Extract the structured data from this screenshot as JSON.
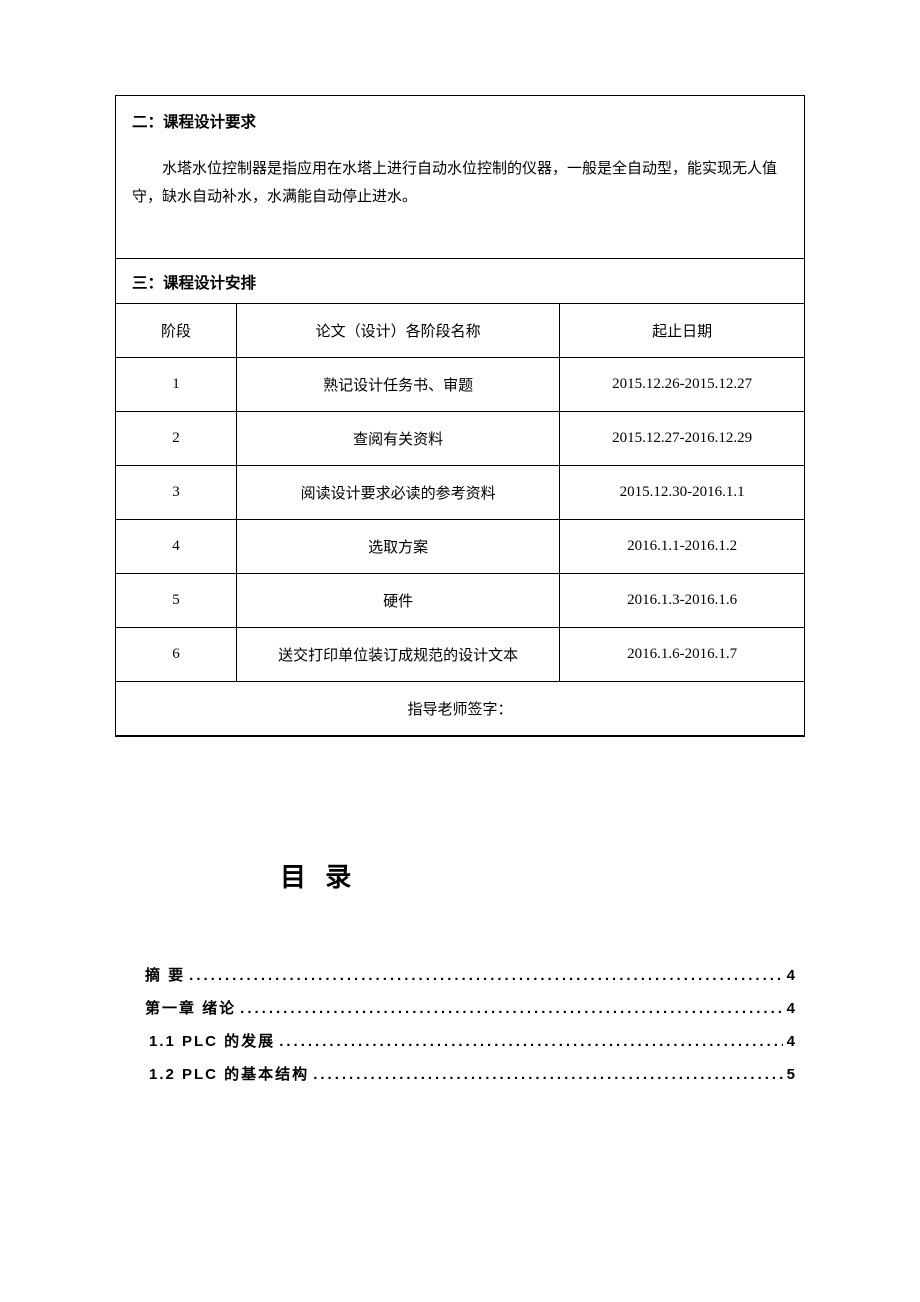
{
  "sections": {
    "req": {
      "heading": "二：课程设计要求",
      "para": "水塔水位控制器是指应用在水塔上进行自动水位控制的仪器，一般是全自动型，能实现无人值守，缺水自动补水，水满能自动停止进水。"
    },
    "plan": {
      "heading": "三：课程设计安排",
      "columns": {
        "stage": "阶段",
        "name": "论文（设计）各阶段名称",
        "date": "起止日期"
      },
      "rows": [
        {
          "stage": "1",
          "name": "熟记设计任务书、审题",
          "date": "2015.12.26-2015.12.27"
        },
        {
          "stage": "2",
          "name": "查阅有关资料",
          "date": "2015.12.27-2016.12.29"
        },
        {
          "stage": "3",
          "name": "阅读设计要求必读的参考资料",
          "date": "2015.12.30-2016.1.1"
        },
        {
          "stage": "4",
          "name": "选取方案",
          "date": "2016.1.1-2016.1.2"
        },
        {
          "stage": "5",
          "name": "硬件",
          "date": "2016.1.3-2016.1.6"
        },
        {
          "stage": "6",
          "name": "送交打印单位装订成规范的设计文本",
          "date": "2016.1.6-2016.1.7"
        }
      ],
      "sign_label": "指导老师签字："
    }
  },
  "toc": {
    "title": "目 录",
    "items": [
      {
        "label": "摘  要",
        "page": "4",
        "sub": false
      },
      {
        "label": "第一章 绪论",
        "page": "4",
        "sub": false
      },
      {
        "label": "1.1 PLC 的发展",
        "page": "4",
        "sub": true
      },
      {
        "label": "1.2 PLC 的基本结构",
        "page": "5",
        "sub": true
      }
    ]
  }
}
